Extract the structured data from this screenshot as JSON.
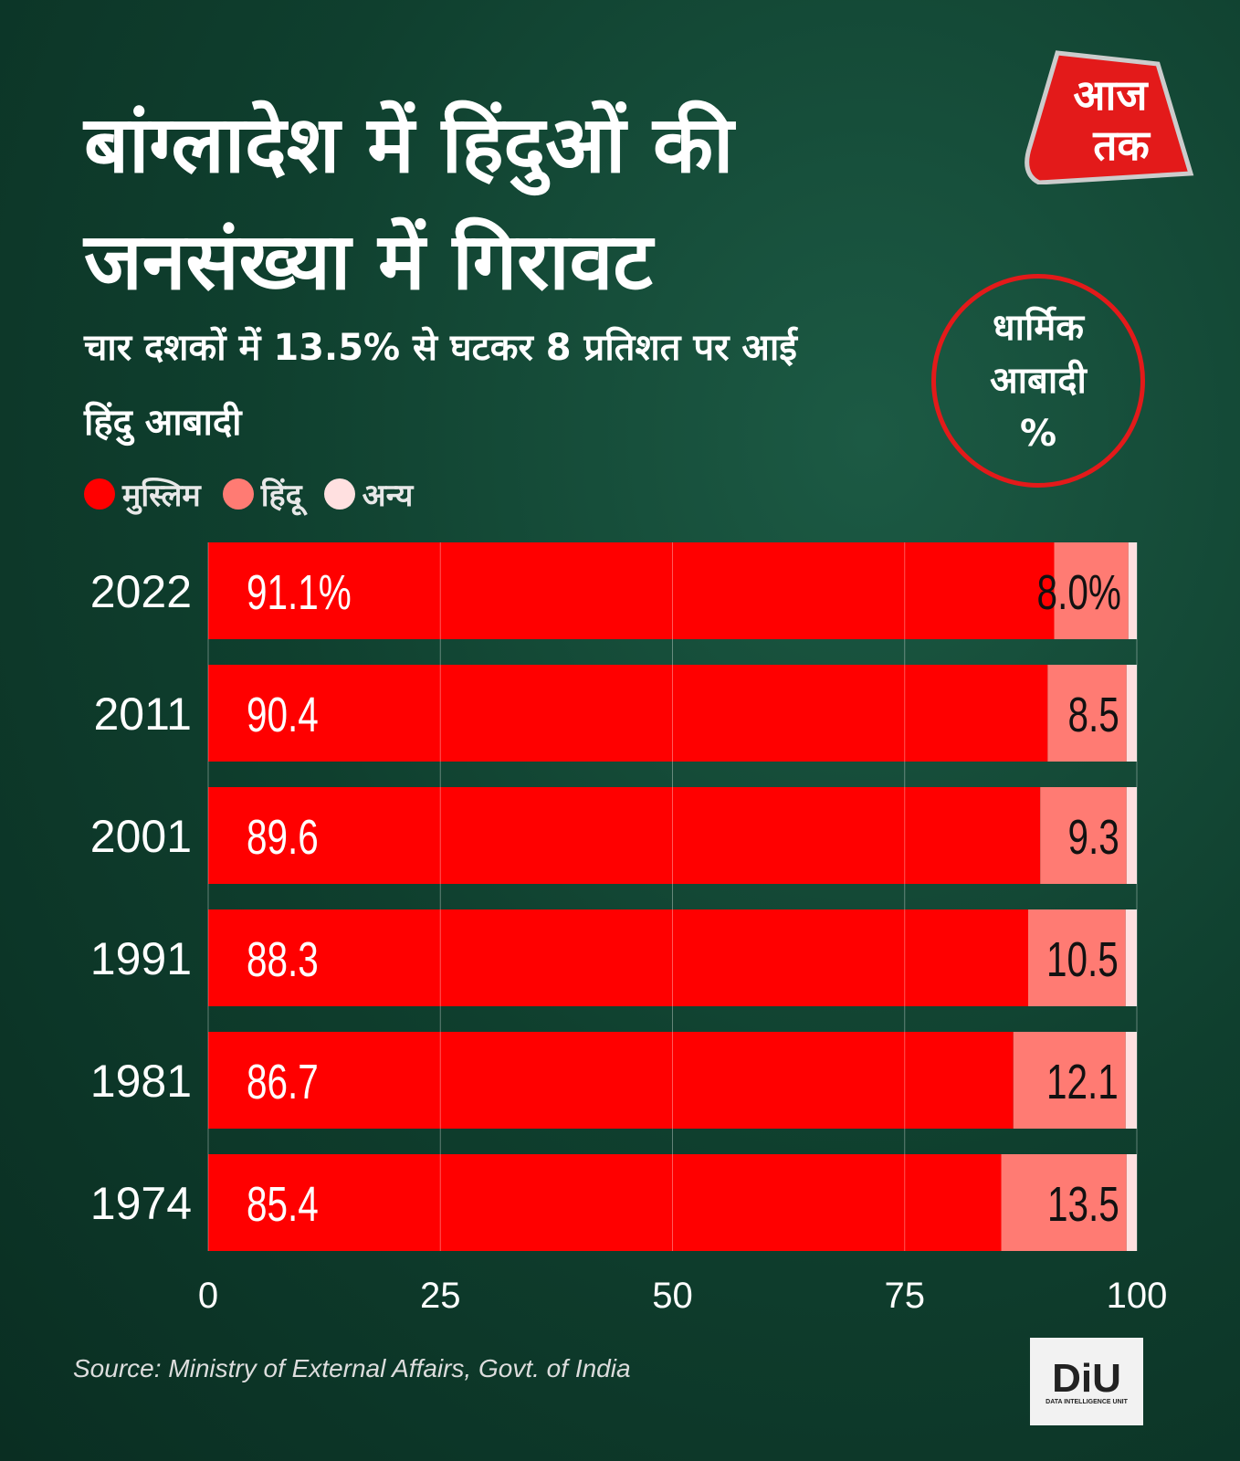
{
  "title": "बांग्लादेश में हिंदुओं की जनसंख्या में गिरावट",
  "subtitle": "चार दशकों में 13.5% से घटकर 8 प्रतिशत पर आई हिंदु आबादी",
  "logo_text": "आज तक",
  "badge": {
    "line1": "धार्मिक",
    "line2": "आबादी",
    "line3": "%"
  },
  "source": "Source: Ministry of External Affairs, Govt. of India",
  "diu": {
    "name": "DiU",
    "full": "DATA INTELLIGENCE UNIT"
  },
  "colors": {
    "muslim": "#ff0000",
    "hindu": "#ff7b73",
    "other": "#ffe0e0"
  },
  "chart_data": {
    "type": "bar",
    "stacked": true,
    "orientation": "horizontal",
    "categories": [
      "2022",
      "2011",
      "2001",
      "1991",
      "1981",
      "1974"
    ],
    "series": [
      {
        "name": "मुस्लिम",
        "values": [
          91.1,
          90.4,
          89.6,
          88.3,
          86.7,
          85.4
        ],
        "labels": [
          "91.1%",
          "90.4",
          "89.6",
          "88.3",
          "86.7",
          "85.4"
        ]
      },
      {
        "name": "हिंदू",
        "values": [
          8.0,
          8.5,
          9.3,
          10.5,
          12.1,
          13.5
        ],
        "labels": [
          "8.0%",
          "8.5",
          "9.3",
          "10.5",
          "12.1",
          "13.5"
        ]
      },
      {
        "name": "अन्य",
        "values": [
          0.9,
          1.1,
          1.1,
          1.2,
          1.2,
          1.1
        ]
      }
    ],
    "xlim": [
      0,
      100
    ],
    "xticks": [
      "0",
      "25",
      "50",
      "75",
      "100"
    ],
    "grid": true,
    "legend": "top-left"
  }
}
